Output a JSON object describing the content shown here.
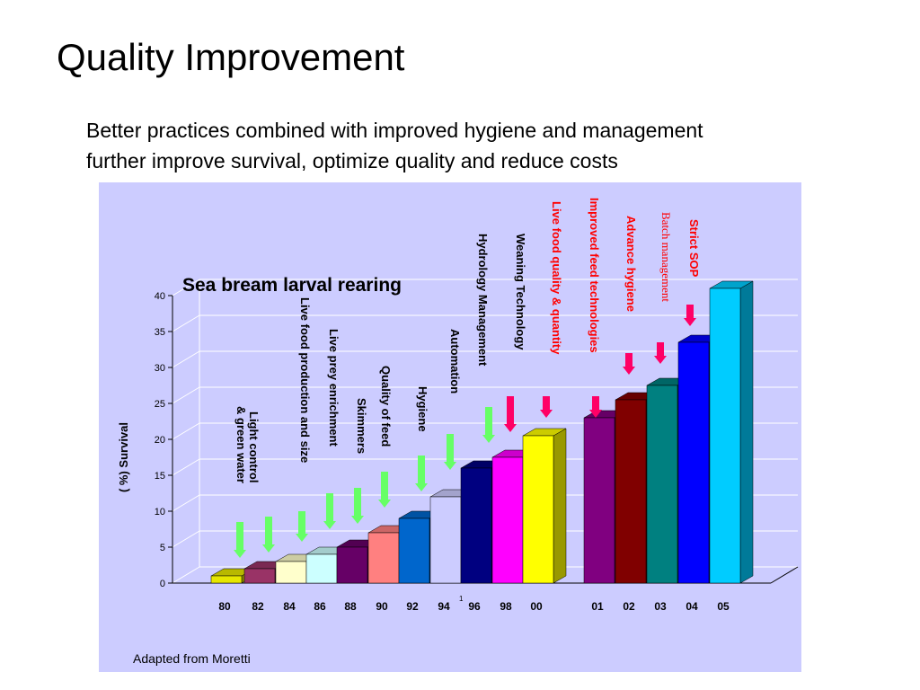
{
  "slide": {
    "title": "Quality Improvement",
    "subtitle_line1": "Better practices combined with improved hygiene and management",
    "subtitle_line2": "further improve survival, optimize quality and reduce costs",
    "source_note": "Adapted from Moretti",
    "page_marker": "1"
  },
  "chart_data": {
    "type": "bar",
    "title": "Sea bream larval rearing",
    "xlabel": "",
    "ylabel": "( %) Survival",
    "ylim": [
      0,
      40
    ],
    "yticks": [
      0,
      5,
      10,
      15,
      20,
      25,
      30,
      35,
      40
    ],
    "grid": true,
    "categories": [
      "80",
      "82",
      "84",
      "86",
      "88",
      "90",
      "92",
      "94",
      "96",
      "98",
      "00",
      "01",
      "02",
      "03",
      "04",
      "05"
    ],
    "values": [
      1,
      2,
      3,
      4,
      5,
      7,
      9,
      12,
      16,
      17.5,
      20.5,
      23,
      25.5,
      27.5,
      33.5,
      41
    ],
    "bar_colors": [
      "#e6e600",
      "#993366",
      "#ffffcc",
      "#ccffff",
      "#660066",
      "#ff8080",
      "#0066cc",
      "#ccccff",
      "#000080",
      "#ff00ff",
      "#ffff00",
      "#800080",
      "#800000",
      "#008080",
      "#0000ff",
      "#00ccff"
    ],
    "annotations": [
      {
        "text": "Light control",
        "line2": "& green water",
        "bar": 0,
        "color": "#000000",
        "arrow": "#66ff66"
      },
      {
        "text": "Live food production and size",
        "bar": 2,
        "color": "#000000",
        "arrow": "#66ff66"
      },
      {
        "text": "Live prey enrichment",
        "bar": 3,
        "color": "#000000",
        "arrow": "#66ff66"
      },
      {
        "text": "Skimmers",
        "bar": 4,
        "color": "#000000",
        "arrow": "#66ff66"
      },
      {
        "text": "Quality of  feed",
        "bar": 5,
        "color": "#000000",
        "arrow": "#66ff66"
      },
      {
        "text": "Hygiene",
        "bar": 6,
        "color": "#000000",
        "arrow": "#66ff66"
      },
      {
        "text": "Automation",
        "bar": 7,
        "color": "#000000",
        "arrow": "#66ff66"
      },
      {
        "text": "Hydrology Management",
        "bar": 8,
        "color": "#000000",
        "arrow": "#66ff66"
      },
      {
        "text": "Weaning Technology",
        "bar": 9,
        "color": "#000000",
        "arrow": "#66ff66"
      },
      {
        "text": "Live food quality & quantity",
        "bar": 10,
        "color": "#ff0000",
        "arrow": "#ff0066"
      },
      {
        "text": "Improved feed technologies",
        "bar": 11,
        "color": "#ff0000",
        "arrow": "#ff0066"
      },
      {
        "text": "Advance hygiene",
        "bar": 12,
        "color": "#ff0000",
        "arrow": "#ff0066"
      },
      {
        "text": "Batch management",
        "bar": 13,
        "color": "#ff0000",
        "arrow": "#ff0066"
      },
      {
        "text": "Strict SOP",
        "bar": 14,
        "color": "#ff0000",
        "arrow": "#ff0066"
      }
    ]
  }
}
